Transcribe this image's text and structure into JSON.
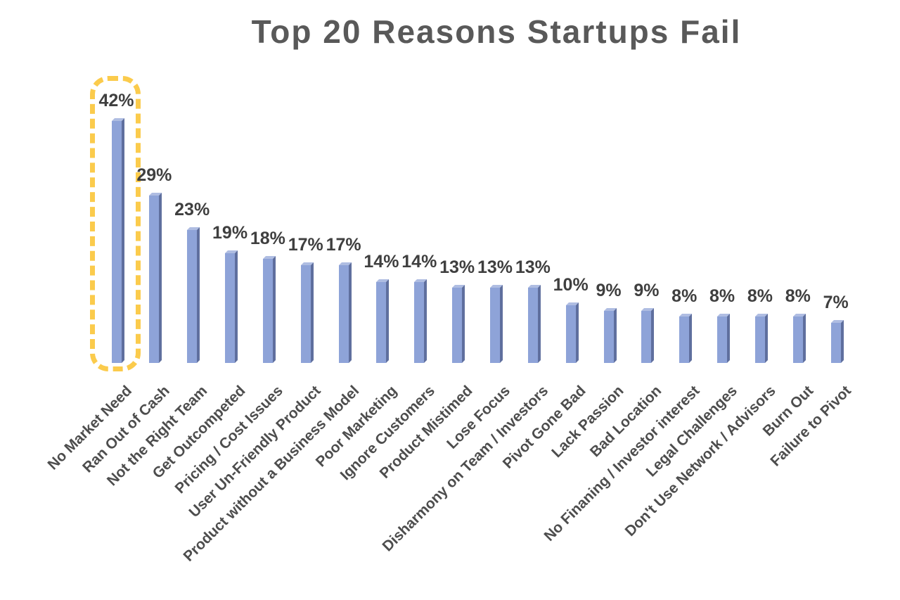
{
  "page": {
    "background": "#FFFFFF"
  },
  "chart_data": {
    "type": "bar",
    "title": "Top 20 Reasons Startups Fail",
    "title_color": "#595959",
    "xlabel": "",
    "ylabel": "",
    "ylim": [
      0,
      45
    ],
    "grid": false,
    "legend": false,
    "bar_style": "3d-extruded",
    "categories": [
      "No Market Need",
      "Ran Out of Cash",
      "Not the Right Team",
      "Get Outcompeted",
      "Pricing / Cost Issues",
      "User Un-Friendly Product",
      "Product without a Business Model",
      "Poor Marketing",
      "Ignore Customers",
      "Product Mistimed",
      "Lose Focus",
      "Disharmony on Team / Investors",
      "Pivot Gone Bad",
      "Lack Passion",
      "Bad Location",
      "No Finaning / Investor interest",
      "Legal Challenges",
      "Don't Use Network / Advisors",
      "Burn Out",
      "Failure to Pivot"
    ],
    "values": [
      42,
      29,
      23,
      19,
      18,
      17,
      17,
      14,
      14,
      13,
      13,
      13,
      10,
      9,
      9,
      8,
      8,
      8,
      8,
      7
    ],
    "value_labels": [
      "42%",
      "29%",
      "23%",
      "19%",
      "18%",
      "17%",
      "17%",
      "14%",
      "14%",
      "13%",
      "13%",
      "13%",
      "10%",
      "9%",
      "9%",
      "8%",
      "8%",
      "8%",
      "8%",
      "7%"
    ],
    "colors": {
      "bar_front": "#8EA3D8",
      "bar_side": "#5F6F9E",
      "bar_top": "#AFBDE2",
      "value_label": "#3F3F3F",
      "category_label": "#4D4D4D"
    },
    "highlight": {
      "index": 0,
      "category": "No Market Need",
      "style": "dashed-rounded-rectangle",
      "color": "#FBCB4C"
    }
  }
}
